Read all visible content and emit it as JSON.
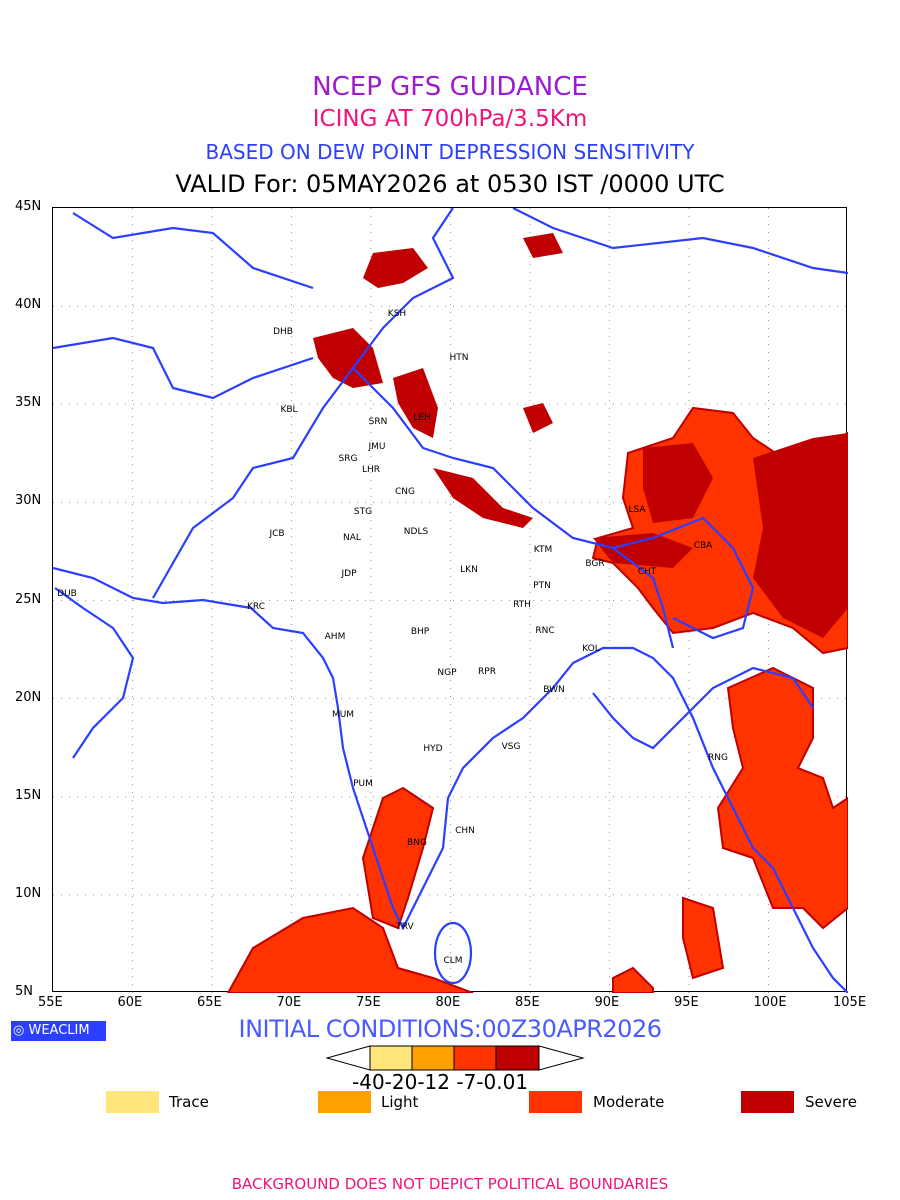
{
  "title": {
    "line1": "NCEP GFS GUIDANCE",
    "line2": "ICING AT 700hPa/3.5Km",
    "line3": "BASED ON DEW POINT DEPRESSION SENSITIVITY",
    "line4": "VALID For: 05MAY2026 at 0530 IST /0000 UTC"
  },
  "axes": {
    "x_ticks": [
      "55E",
      "60E",
      "65E",
      "70E",
      "75E",
      "80E",
      "85E",
      "90E",
      "95E",
      "100E",
      "105E"
    ],
    "y_ticks": [
      "45N",
      "40N",
      "35N",
      "30N",
      "25N",
      "20N",
      "15N",
      "10N",
      "5N"
    ]
  },
  "cities": [
    "KSH",
    "DHB",
    "HTN",
    "KBL",
    "SRN",
    "LEH",
    "JMU",
    "SRG",
    "LHR",
    "CNG",
    "STG",
    "JCB",
    "NAL",
    "NDLS",
    "JDP",
    "LKN",
    "KTM",
    "LSA",
    "CBA",
    "BGR",
    "CHT",
    "PTN",
    "DUB",
    "KRC",
    "RTH",
    "AHM",
    "BHP",
    "RNC",
    "KOL",
    "NGP",
    "RPR",
    "BWN",
    "MUM",
    "HYD",
    "VSG",
    "RNG",
    "PUM",
    "CHN",
    "BNG",
    "TRV",
    "CLM"
  ],
  "logo": "WEACLIM",
  "initial_conditions": "INITIAL CONDITIONS:00Z30APR2026",
  "colorbar": {
    "labels": "-40-20-12 -7-0.01",
    "colors": [
      "#ffe57a",
      "#ff9f00",
      "#ff3300",
      "#c00000"
    ]
  },
  "legend": [
    {
      "label": "Trace",
      "color": "#ffe57a"
    },
    {
      "label": "Light",
      "color": "#ff9f00"
    },
    {
      "label": "Moderate",
      "color": "#ff3300"
    },
    {
      "label": "Severe",
      "color": "#c00000"
    }
  ],
  "footer": "BACKGROUND DOES NOT DEPICT POLITICAL BOUNDARIES"
}
